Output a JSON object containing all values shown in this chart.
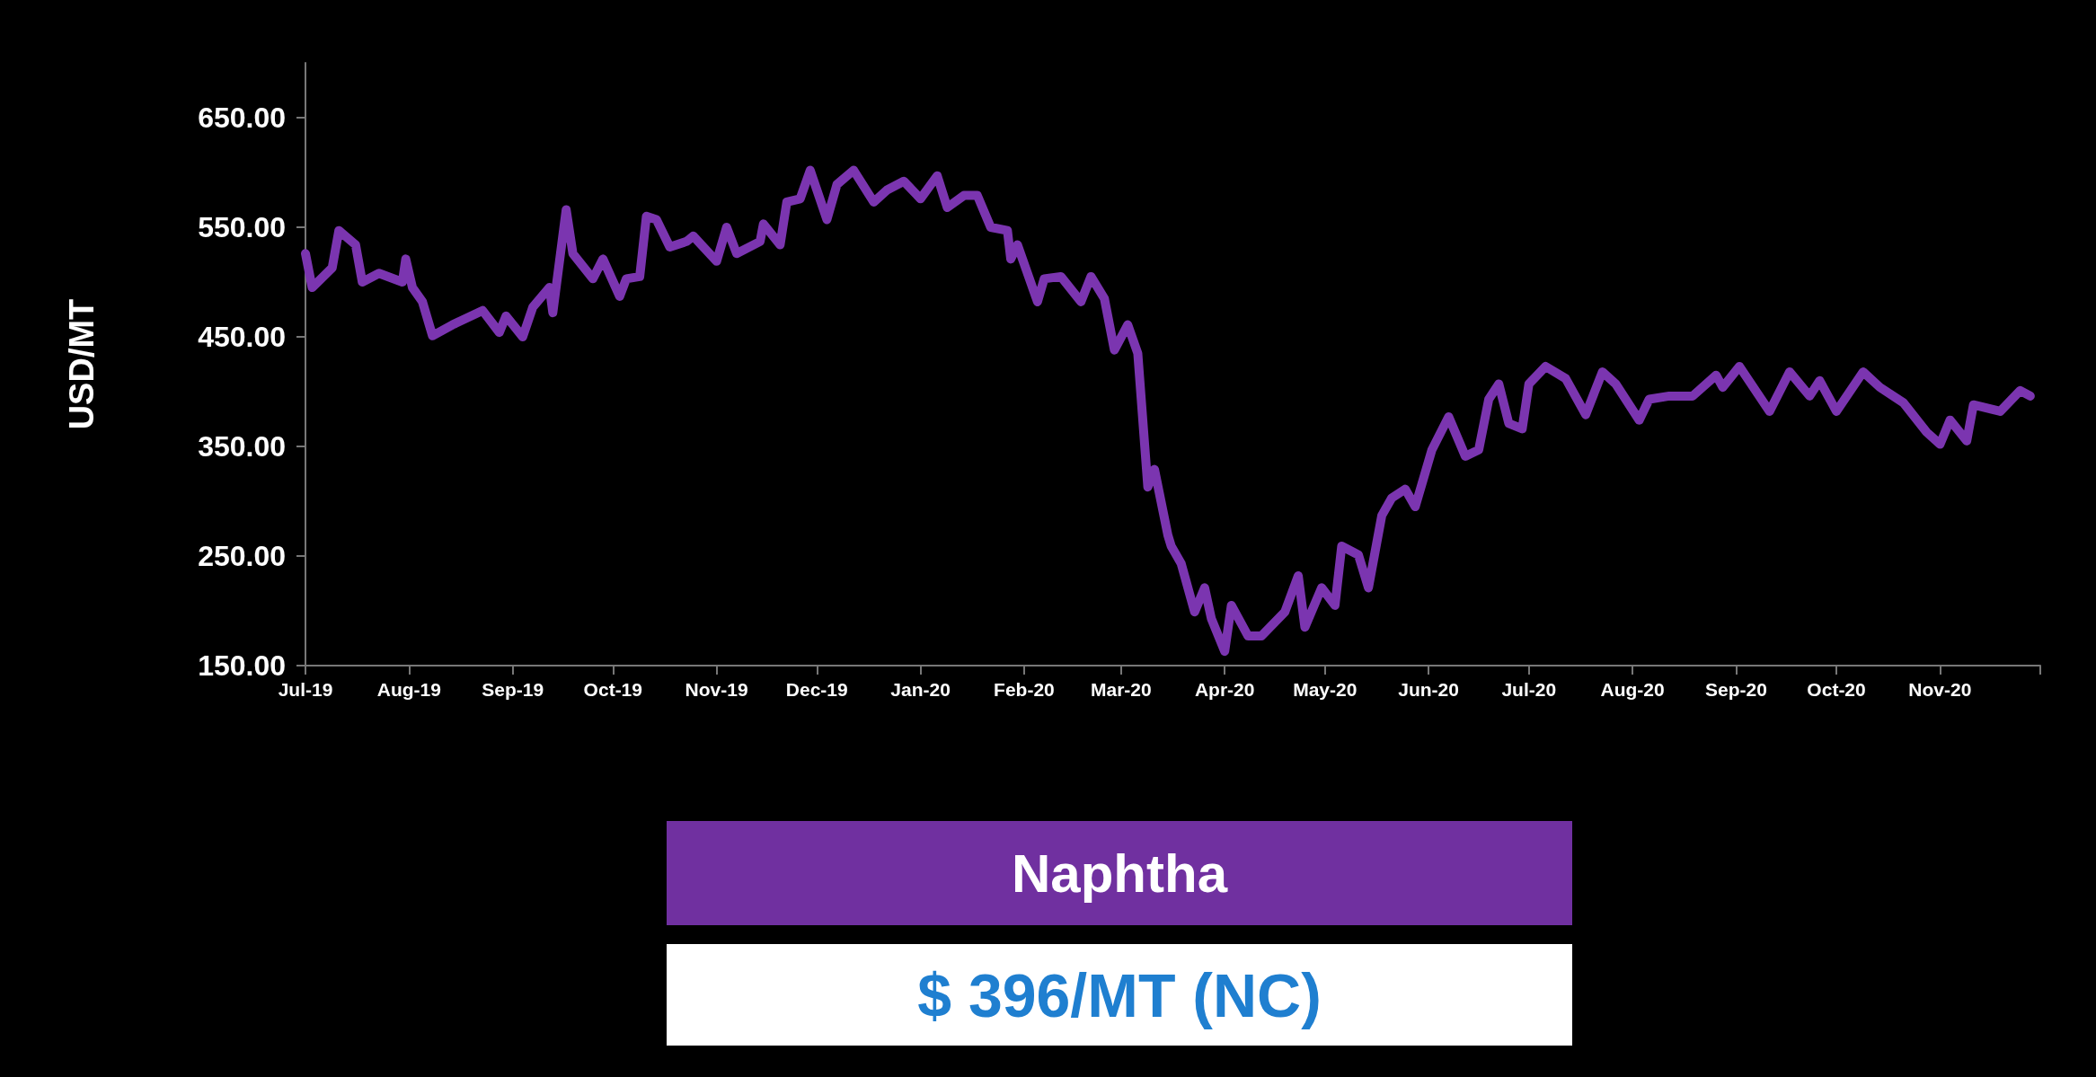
{
  "chart_data": {
    "type": "line",
    "ylabel": "USD/MT",
    "x": [
      "2019-07-01",
      "2019-07-03",
      "2019-07-09",
      "2019-07-11",
      "2019-07-16",
      "2019-07-18",
      "2019-07-23",
      "2019-07-30",
      "2019-07-31",
      "2019-08-02",
      "2019-08-05",
      "2019-08-08",
      "2019-08-14",
      "2019-08-23",
      "2019-08-28",
      "2019-08-30",
      "2019-09-04",
      "2019-09-07",
      "2019-09-12",
      "2019-09-13",
      "2019-09-17",
      "2019-09-19",
      "2019-09-25",
      "2019-09-28",
      "2019-10-03",
      "2019-10-05",
      "2019-10-09",
      "2019-10-11",
      "2019-10-14",
      "2019-10-18",
      "2019-10-23",
      "2019-10-25",
      "2019-11-01",
      "2019-11-04",
      "2019-11-07",
      "2019-11-14",
      "2019-11-15",
      "2019-11-20",
      "2019-11-22",
      "2019-11-26",
      "2019-11-29",
      "2019-12-04",
      "2019-12-07",
      "2019-12-12",
      "2019-12-18",
      "2019-12-22",
      "2019-12-27",
      "2020-01-01",
      "2020-01-06",
      "2020-01-09",
      "2020-01-14",
      "2020-01-18",
      "2020-01-22",
      "2020-01-27",
      "2020-01-28",
      "2020-01-30",
      "2020-02-05",
      "2020-02-07",
      "2020-02-12",
      "2020-02-18",
      "2020-02-21",
      "2020-02-25",
      "2020-02-28",
      "2020-03-03",
      "2020-03-06",
      "2020-03-09",
      "2020-03-11",
      "2020-03-15",
      "2020-03-16",
      "2020-03-19",
      "2020-03-23",
      "2020-03-26",
      "2020-03-28",
      "2020-04-01",
      "2020-04-03",
      "2020-04-08",
      "2020-04-12",
      "2020-04-19",
      "2020-04-23",
      "2020-04-25",
      "2020-04-30",
      "2020-05-04",
      "2020-05-06",
      "2020-05-11",
      "2020-05-14",
      "2020-05-18",
      "2020-05-21",
      "2020-05-25",
      "2020-05-28",
      "2020-06-02",
      "2020-06-07",
      "2020-06-12",
      "2020-06-16",
      "2020-06-19",
      "2020-06-22",
      "2020-06-25",
      "2020-06-29",
      "2020-07-01",
      "2020-07-06",
      "2020-07-12",
      "2020-07-18",
      "2020-07-23",
      "2020-07-27",
      "2020-08-03",
      "2020-08-06",
      "2020-08-12",
      "2020-08-19",
      "2020-08-26",
      "2020-08-28",
      "2020-09-02",
      "2020-09-11",
      "2020-09-17",
      "2020-09-23",
      "2020-09-26",
      "2020-10-01",
      "2020-10-09",
      "2020-10-14",
      "2020-10-21",
      "2020-10-28",
      "2020-11-01",
      "2020-11-04",
      "2020-11-09",
      "2020-11-11",
      "2020-11-19",
      "2020-11-25",
      "2020-11-28"
    ],
    "series": [
      {
        "color": "#7b35b0",
        "values": [
          526,
          495,
          513,
          547,
          534,
          500,
          508,
          500,
          521,
          495,
          482,
          451,
          461,
          474,
          454,
          469,
          450,
          477,
          495,
          472,
          566,
          526,
          503,
          521,
          487,
          503,
          505,
          560,
          557,
          532,
          537,
          542,
          519,
          550,
          526,
          537,
          553,
          534,
          573,
          576,
          602,
          557,
          589,
          602,
          573,
          584,
          592,
          576,
          597,
          568,
          579,
          579,
          550,
          547,
          521,
          534,
          482,
          503,
          505,
          482,
          505,
          485,
          438,
          461,
          435,
          313,
          329,
          269,
          259,
          243,
          199,
          221,
          193,
          163,
          205,
          177,
          177,
          199,
          232,
          185,
          221,
          205,
          259,
          251,
          221,
          287,
          303,
          311,
          295,
          347,
          377,
          341,
          347,
          393,
          407,
          371,
          366,
          407,
          423,
          412,
          379,
          418,
          407,
          374,
          393,
          396,
          396,
          415,
          404,
          423,
          382,
          418,
          396,
          410,
          382,
          418,
          404,
          390,
          363,
          352,
          374,
          355,
          388,
          382,
          401,
          396
        ]
      }
    ],
    "xlim": [
      "2019-07-01",
      "2020-12-01"
    ],
    "xticks": [
      {
        "value": "2019-07-01",
        "label": "Jul-19"
      },
      {
        "value": "2019-08-01",
        "label": "Aug-19"
      },
      {
        "value": "2019-09-01",
        "label": "Sep-19"
      },
      {
        "value": "2019-10-01",
        "label": "Oct-19"
      },
      {
        "value": "2019-11-01",
        "label": "Nov-19"
      },
      {
        "value": "2019-12-01",
        "label": "Dec-19"
      },
      {
        "value": "2020-01-01",
        "label": "Jan-20"
      },
      {
        "value": "2020-02-01",
        "label": "Feb-20"
      },
      {
        "value": "2020-03-01",
        "label": "Mar-20"
      },
      {
        "value": "2020-04-01",
        "label": "Apr-20"
      },
      {
        "value": "2020-05-01",
        "label": "May-20"
      },
      {
        "value": "2020-06-01",
        "label": "Jun-20"
      },
      {
        "value": "2020-07-01",
        "label": "Jul-20"
      },
      {
        "value": "2020-08-01",
        "label": "Aug-20"
      },
      {
        "value": "2020-09-01",
        "label": "Sep-20"
      },
      {
        "value": "2020-10-01",
        "label": "Oct-20"
      },
      {
        "value": "2020-11-01",
        "label": "Nov-20"
      },
      {
        "value": "2020-12-01",
        "label": null
      }
    ],
    "ylim": [
      150,
      700
    ],
    "yticks": [
      {
        "value": 150,
        "label": "150.00"
      },
      {
        "value": 250,
        "label": "250.00"
      },
      {
        "value": 350,
        "label": "350.00"
      },
      {
        "value": 450,
        "label": "450.00"
      },
      {
        "value": 550,
        "label": "550.00"
      },
      {
        "value": 650,
        "label": "650.00"
      }
    ],
    "grid": false,
    "annotations": [
      "Naphtha",
      "$ 396/MT (NC)"
    ]
  }
}
